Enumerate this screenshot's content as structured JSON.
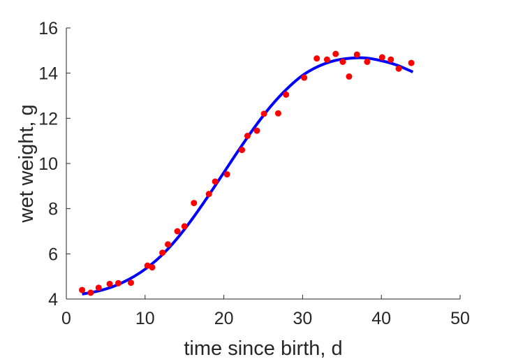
{
  "chart_data": {
    "type": "scatter",
    "title": "",
    "xlabel": "time since birth, d",
    "ylabel": "wet weight, g",
    "xlim": [
      0,
      50
    ],
    "ylim": [
      4,
      16
    ],
    "xticks": [
      0,
      10,
      20,
      30,
      40,
      50
    ],
    "yticks": [
      4,
      6,
      8,
      10,
      12,
      14,
      16
    ],
    "xtick_labels": [
      "0",
      "10",
      "20",
      "30",
      "40",
      "50"
    ],
    "ytick_labels": [
      "4",
      "6",
      "8",
      "10",
      "12",
      "14",
      "16"
    ],
    "grid": false,
    "legend": null,
    "series": [
      {
        "kind": "points",
        "color": "#ff0000",
        "x": [
          2,
          3.1,
          4.1,
          5.5,
          6.6,
          8.2,
          10.3,
          10.9,
          12.2,
          12.9,
          14.1,
          15,
          16.2,
          18.1,
          18.9,
          20.4,
          22.3,
          23,
          24.2,
          25.1,
          26.9,
          27.9,
          30.2,
          31.8,
          33.1,
          34.2,
          35.1,
          35.9,
          36.9,
          38.2,
          40.1,
          41.2,
          42.2,
          43.8
        ],
        "y": [
          4.4,
          4.28,
          4.5,
          4.67,
          4.7,
          4.72,
          5.48,
          5.4,
          6.05,
          6.42,
          7.0,
          7.22,
          8.25,
          8.65,
          9.2,
          9.52,
          10.6,
          11.22,
          11.45,
          12.2,
          12.22,
          13.05,
          13.8,
          14.65,
          14.6,
          14.85,
          14.5,
          13.85,
          14.82,
          14.5,
          14.7,
          14.6,
          14.2,
          14.45
        ]
      },
      {
        "kind": "fit-curve",
        "color": "#0000ff",
        "x": [
          2,
          4,
          6,
          8,
          10,
          12,
          14,
          16,
          18,
          20,
          22,
          24,
          26,
          28,
          30,
          32,
          34,
          36,
          38,
          40,
          42,
          44
        ],
        "y": [
          4.22,
          4.35,
          4.56,
          4.88,
          5.32,
          5.9,
          6.65,
          7.55,
          8.55,
          9.6,
          10.65,
          11.65,
          12.55,
          13.3,
          13.9,
          14.3,
          14.55,
          14.66,
          14.67,
          14.55,
          14.35,
          14.05
        ]
      }
    ]
  }
}
